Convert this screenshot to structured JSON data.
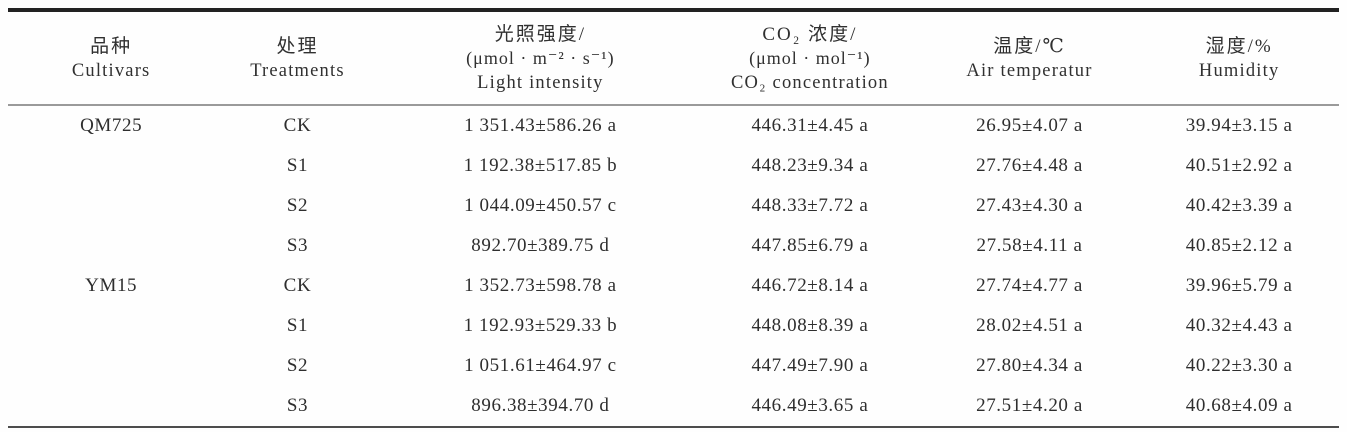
{
  "table": {
    "columns": {
      "cultivars": {
        "zh": "品种",
        "en": "Cultivars"
      },
      "treatments": {
        "zh": "处理",
        "en": "Treatments"
      },
      "light": {
        "zh": "光照强度/",
        "unit": "(μmol · m⁻² · s⁻¹)",
        "en": "Light intensity"
      },
      "co2": {
        "zh": "CO₂ 浓度/",
        "unit": "(μmol · mol⁻¹)",
        "en": "CO₂ concentration"
      },
      "temperature": {
        "zh": "温度/℃",
        "en": "Air temperatur"
      },
      "humidity": {
        "zh": "湿度/%",
        "en": "Humidity"
      }
    },
    "rows": [
      {
        "cultivar": "QM725",
        "treatment": "CK",
        "light": "1 351.43±586.26 a",
        "co2": "446.31±4.45 a",
        "temperature": "26.95±4.07 a",
        "humidity": "39.94±3.15 a"
      },
      {
        "cultivar": "",
        "treatment": "S1",
        "light": "1 192.38±517.85 b",
        "co2": "448.23±9.34 a",
        "temperature": "27.76±4.48 a",
        "humidity": "40.51±2.92 a"
      },
      {
        "cultivar": "",
        "treatment": "S2",
        "light": "1 044.09±450.57 c",
        "co2": "448.33±7.72 a",
        "temperature": "27.43±4.30 a",
        "humidity": "40.42±3.39 a"
      },
      {
        "cultivar": "",
        "treatment": "S3",
        "light": "892.70±389.75 d",
        "co2": "447.85±6.79 a",
        "temperature": "27.58±4.11 a",
        "humidity": "40.85±2.12 a"
      },
      {
        "cultivar": "YM15",
        "treatment": "CK",
        "light": "1 352.73±598.78 a",
        "co2": "446.72±8.14 a",
        "temperature": "27.74±4.77 a",
        "humidity": "39.96±5.79 a"
      },
      {
        "cultivar": "",
        "treatment": "S1",
        "light": "1 192.93±529.33 b",
        "co2": "448.08±8.39 a",
        "temperature": "28.02±4.51 a",
        "humidity": "40.32±4.43 a"
      },
      {
        "cultivar": "",
        "treatment": "S2",
        "light": "1 051.61±464.97 c",
        "co2": "447.49±7.90 a",
        "temperature": "27.80±4.34 a",
        "humidity": "40.22±3.30 a"
      },
      {
        "cultivar": "",
        "treatment": "S3",
        "light": "896.38±394.70 d",
        "co2": "446.49±3.65 a",
        "temperature": "27.51±4.20 a",
        "humidity": "40.68±4.09 a"
      }
    ]
  }
}
